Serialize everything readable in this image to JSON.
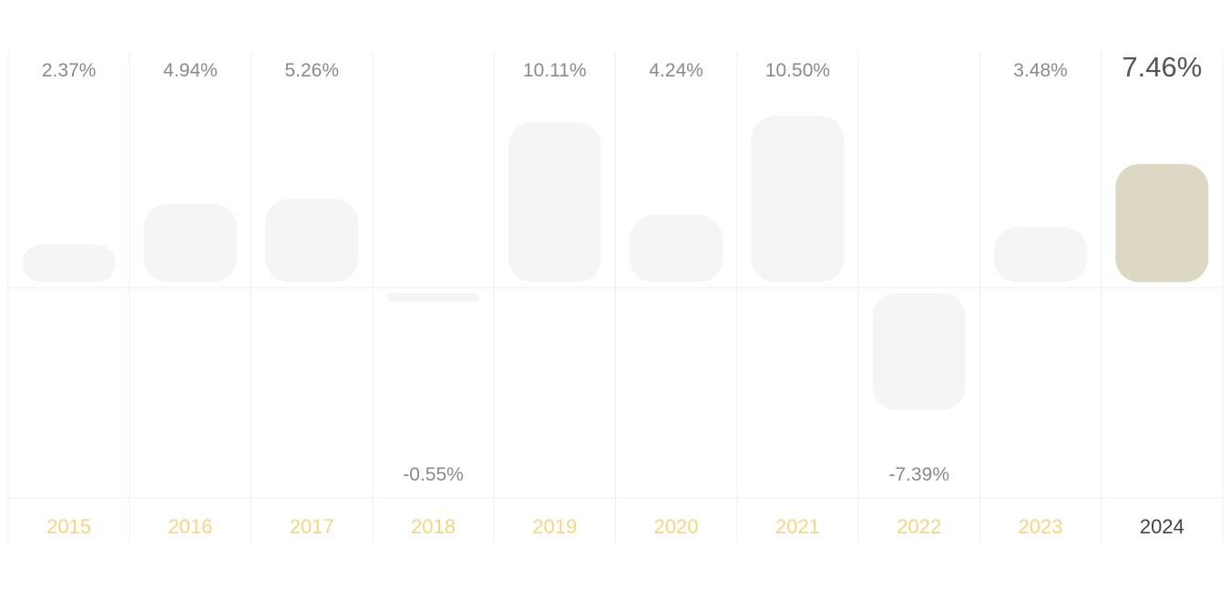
{
  "chart_data": {
    "type": "bar",
    "title": "",
    "xlabel": "",
    "ylabel": "",
    "categories": [
      "2015",
      "2016",
      "2017",
      "2018",
      "2019",
      "2020",
      "2021",
      "2022",
      "2023",
      "2024"
    ],
    "values": [
      2.37,
      4.94,
      5.26,
      -0.55,
      10.11,
      4.24,
      10.5,
      -7.39,
      3.48,
      7.46
    ],
    "value_labels": [
      "2.37%",
      "4.94%",
      "5.26%",
      "-0.55%",
      "10.11%",
      "4.24%",
      "10.50%",
      "-7.39%",
      "3.48%",
      "7.46%"
    ],
    "highlighted_category": "2024",
    "ylim": [
      -12.5,
      13.5
    ],
    "grid": true,
    "legend": "none",
    "colors": {
      "bar": "#f6f5f5",
      "bar_highlight": "#ddd8c4",
      "year_label": "#f5d67e",
      "year_label_highlight": "#444444",
      "value_label": "#8a8a8a",
      "value_label_highlight": "#555555",
      "grid": "#efefef"
    }
  }
}
